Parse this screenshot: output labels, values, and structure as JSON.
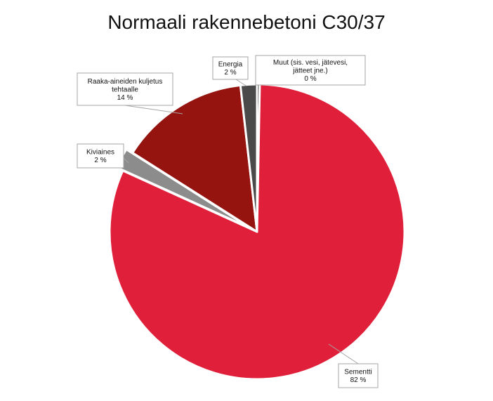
{
  "chart_data": {
    "type": "pie",
    "title": "Normaali rakennebetoni C30/37",
    "start_angle_deg": 0,
    "direction": "clockwise",
    "slices": [
      {
        "name": "Muut (sis. vesi, jätevesi, jätteet jne.)",
        "label_lines": [
          "Muut (sis. vesi, jätevesi,",
          "jätteet jne.)"
        ],
        "value": 0.3,
        "value_label": "0 %",
        "color": "#1a1a1a"
      },
      {
        "name": "Sementti",
        "label_lines": [
          "Sementti"
        ],
        "value": 81.5,
        "value_label": "82 %",
        "color": "#e0203a"
      },
      {
        "name": "Kiviaines",
        "label_lines": [
          "Kiviaines"
        ],
        "value": 2.2,
        "value_label": "2 %",
        "color": "#8c8c8c"
      },
      {
        "name": "Raaka-aineiden kuljetus tehtaalle",
        "label_lines": [
          "Raaka-aineiden kuljetus",
          "tehtaalle"
        ],
        "value": 14.2,
        "value_label": "14 %",
        "color": "#95140f"
      },
      {
        "name": "Energia",
        "label_lines": [
          "Energia"
        ],
        "value": 1.8,
        "value_label": "2 %",
        "color": "#4a4a4a"
      }
    ],
    "labels": "callout-boxes",
    "legend": "none"
  }
}
